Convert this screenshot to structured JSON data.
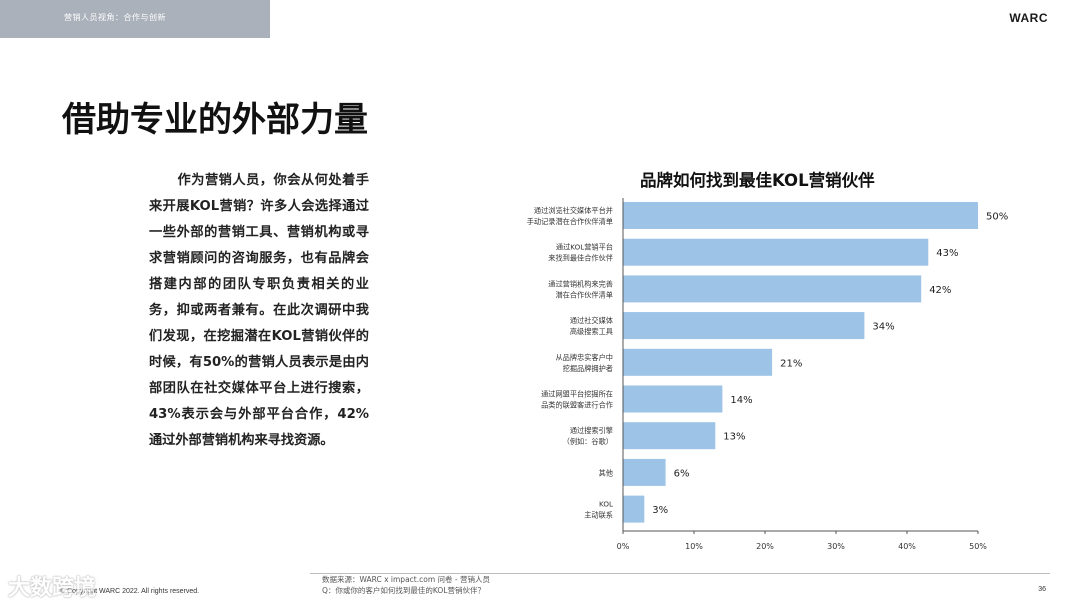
{
  "header": {
    "section": "营销人员视角：合作与创新",
    "brand": "WARC"
  },
  "page_title": "借助专业的外部力量",
  "body_text": "作为营销人员，你会从何处着手来开展KOL营销？许多人会选择通过一些外部的营销工具、营销机构或寻求营销顾问的咨询服务，也有品牌会搭建内部的团队专职负责相关的业务，抑或两者兼有。在此次调研中我们发现，在挖掘潜在KOL营销伙伴的时候，有50%的营销人员表示是由内部团队在社交媒体平台上进行搜索，43%表示会与外部平台合作，42%通过外部营销机构来寻找资源。",
  "footer": {
    "source_line1": "数据来源：WARC x impact.com 问卷 - 营销人员",
    "source_line2": "Q：你或你的客户如何找到最佳的KOL营销伙伴？",
    "copyright": "© Copyright WARC 2022. All rights reserved.",
    "page_number": "36",
    "watermark": "大数跨境"
  },
  "colors": {
    "bar": "#9dc3e6",
    "banner": "#aab1bb",
    "axis": "#555555"
  },
  "chart_data": {
    "type": "bar",
    "orientation": "horizontal",
    "title": "品牌如何找到最佳KOL营销伙伴",
    "categories": [
      [
        "通过浏览社交媒体平台并",
        "手动记录潜在合作伙伴清单"
      ],
      [
        "通过KOL营销平台",
        "来找到最佳合作伙伴"
      ],
      [
        "通过营销机构来完善",
        "潜在合作伙伴清单"
      ],
      [
        "通过社交媒体",
        "高级搜索工具"
      ],
      [
        "从品牌忠实客户中",
        "挖掘品牌拥护者"
      ],
      [
        "通过网盟平台挖掘所在",
        "品类的联盟客进行合作"
      ],
      [
        "通过搜索引擎",
        "（例如：谷歌）"
      ],
      [
        "其他"
      ],
      [
        "KOL",
        "主动联系"
      ]
    ],
    "values": [
      50,
      43,
      42,
      34,
      21,
      14,
      13,
      6,
      3
    ],
    "value_labels": [
      "50%",
      "43%",
      "42%",
      "34%",
      "21%",
      "14%",
      "13%",
      "6%",
      "3%"
    ],
    "xlim": [
      0,
      50
    ],
    "x_ticks": [
      "0%",
      "10%",
      "20%",
      "30%",
      "40%",
      "50%"
    ],
    "grid": false,
    "legend": "none"
  }
}
